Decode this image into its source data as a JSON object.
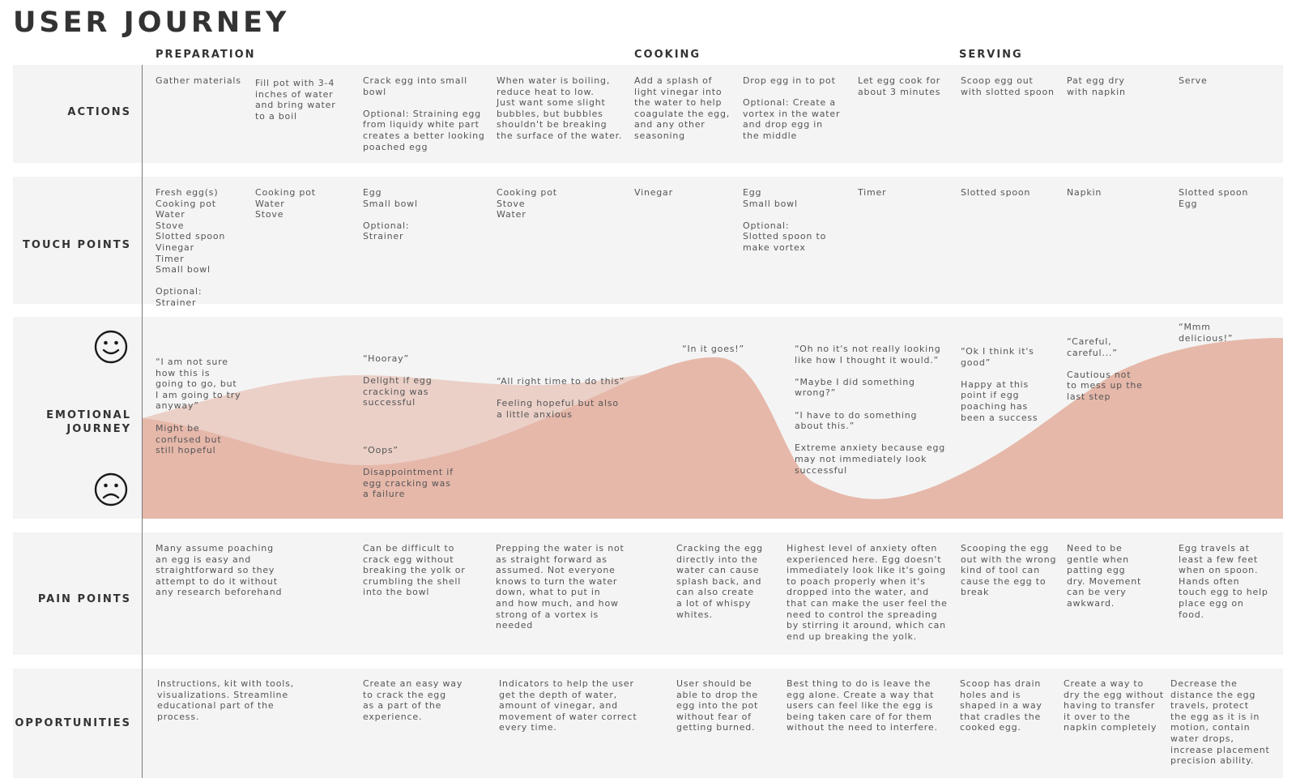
{
  "title": "USER JOURNEY",
  "phases": [
    "PREPARATION",
    "COOKING",
    "SERVING"
  ],
  "rows": {
    "actions": "ACTIONS",
    "touch_points": "TOUCH POINTS",
    "emotional_journey": "EMOTIONAL\nJOURNEY",
    "pain_points": "PAIN POINTS",
    "opportunities": "OPPORTUNITIES"
  },
  "colors": {
    "band": "#f4f4f4",
    "wave_dark": "#e6b8aa",
    "wave_light": "#ebd0c8",
    "text": "#555555",
    "heading": "#333333"
  },
  "icons": [
    "smiley-face-icon",
    "sad-face-icon"
  ],
  "actions": [
    [
      "Gather materials"
    ],
    [
      "Fill pot with 3-4\ninches of water\nand bring water\nto a boil"
    ],
    [
      "Crack egg into small\nbowl",
      "Optional: Straining egg\nfrom liquidy white part\ncreates a better looking\npoached egg"
    ],
    [
      "When water is boiling,\nreduce heat to low.\nJust want some slight\nbubbles, but bubbles\nshouldn't be breaking\nthe surface of the water."
    ],
    [
      "Add a splash of\nlight vinegar into\nthe water to help\ncoagulate the egg,\nand any other\nseasoning"
    ],
    [
      "Drop egg in to pot",
      "Optional: Create a\nvortex in the water\nand drop egg in\nthe middle"
    ],
    [
      "Let egg cook for\nabout 3 minutes"
    ],
    [
      "Scoop egg out\nwith slotted spoon"
    ],
    [
      "Pat egg dry\nwith napkin"
    ],
    [
      "Serve"
    ]
  ],
  "touch_points": [
    [
      "Fresh egg(s)\nCooking pot\nWater\nStove\nSlotted spoon\nVinegar\nTimer\nSmall bowl",
      "Optional:\nStrainer"
    ],
    [
      "Cooking pot\nWater\nStove"
    ],
    [
      "Egg\nSmall bowl",
      "Optional:\nStrainer"
    ],
    [
      "Cooking pot\nStove\nWater"
    ],
    [
      "Vinegar"
    ],
    [
      "Egg\nSmall bowl",
      "Optional:\nSlotted spoon to\nmake vortex"
    ],
    [
      "Timer"
    ],
    [
      "Slotted spoon"
    ],
    [
      "Napkin"
    ],
    [
      "Slotted spoon\nEgg"
    ]
  ],
  "emotions": [
    [
      "“I am not sure\nhow this is\ngoing to go, but\nI am going to try\nanyway”"
    ],
    [
      "Might be\nconfused but\nstill hopeful"
    ],
    [
      "“Hooray”",
      "Delight if egg\ncracking was\nsuccessful"
    ],
    [
      "“Oops”",
      "Disappointment if\negg cracking was\na failure"
    ],
    [
      "“All right time to do this”",
      "Feeling hopeful but also\na little anxious"
    ],
    [
      "“In it goes!”"
    ],
    [
      "“Oh no it's not really looking\nlike how I thought it would.”",
      "“Maybe I did something\nwrong?”",
      "“I have to do something\nabout this.”",
      "Extreme anxiety because egg\nmay not immediately look\nsuccessful"
    ],
    [
      "“Ok I think it's\ngood”",
      "Happy at this\npoint if egg\npoaching has\nbeen a success"
    ],
    [
      "“Careful,\ncareful...”",
      "Cautious not\nto mess up the\nlast step"
    ],
    [
      "“Mmm\ndelicious!”"
    ]
  ],
  "pain_points": [
    [
      "Many assume poaching\nan egg is easy and\nstraightforward so they\nattempt to do it without\nany research beforehand"
    ],
    [
      "Can be difficult to\ncrack egg without\nbreaking the yolk or\ncrumbling the shell\ninto the bowl"
    ],
    [
      "Prepping the water is not\nas straight forward as\nassumed. Not everyone\nknows to turn the water\ndown, what to put in\nand how much, and how\nstrong of a vortex is\nneeded"
    ],
    [
      "Cracking the egg\ndirectly into the\nwater can cause\nsplash back, and\ncan also create\na lot of whispy\nwhites."
    ],
    [
      "Highest level of anxiety often\nexperienced here. Egg doesn't\nimmediately look like it's going\nto poach properly when it's\ndropped into the water, and\nthat can make the user feel the\nneed to control the spreading\nby stirring it around, which can\nend up breaking the yolk."
    ],
    [
      "Scooping the egg\nout with the wrong\nkind of tool can\ncause the egg to\nbreak"
    ],
    [
      "Need to be\ngentle when\npatting egg\ndry. Movement\ncan be very\nawkward."
    ],
    [
      "Egg travels at\nleast a few feet\nwhen on spoon.\nHands often\ntouch egg to help\nplace egg on\nfood."
    ]
  ],
  "opportunities": [
    [
      "Instructions, kit with tools,\nvisualizations. Streamline\neducational part of the\nprocess."
    ],
    [
      "Create an easy way\nto crack the egg\nas a part of the\nexperience."
    ],
    [
      "Indicators to help the user\nget the depth of water,\namount of vinegar, and\nmovement of water correct\nevery time."
    ],
    [
      "User should be\nable to drop the\negg into the pot\nwithout fear of\ngetting burned."
    ],
    [
      "Best thing to do is leave the\negg alone. Create a way that\nusers can feel like the egg is\nbeing taken care of for them\nwithout the need to interfere."
    ],
    [
      "Scoop has drain\nholes and is\nshaped in a way\nthat cradles the\ncooked egg."
    ],
    [
      "Create a way  to\ndry the egg without\nhaving to transfer\nit over to the\nnapkin completely"
    ],
    [
      "Decrease the\ndistance the egg\ntravels, protect\nthe egg as it is in\nmotion, contain\nwater drops,\nincrease placement\nprecision ability."
    ]
  ]
}
